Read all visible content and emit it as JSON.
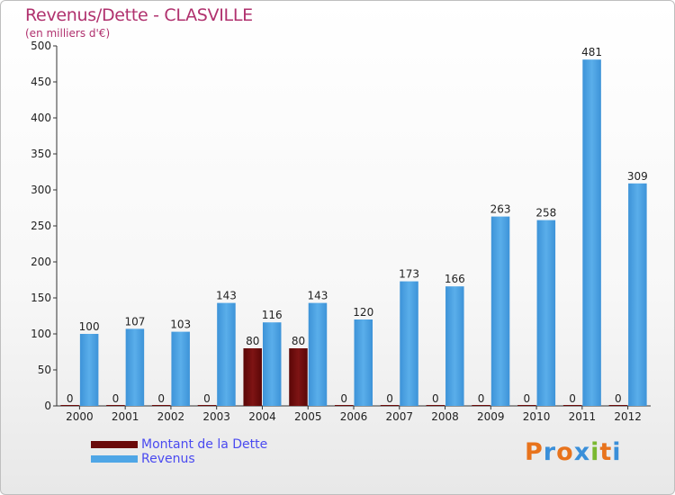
{
  "chart_data": {
    "type": "bar",
    "title": "Revenus/Dette - CLASVILLE",
    "subtitle": "(en milliers d'€)",
    "categories": [
      "2000",
      "2001",
      "2002",
      "2003",
      "2004",
      "2005",
      "2006",
      "2007",
      "2008",
      "2009",
      "2010",
      "2011",
      "2012"
    ],
    "series": [
      {
        "name": "Montant de la Dette",
        "color": "#6b0a0a",
        "values": [
          0,
          0,
          0,
          0,
          80,
          80,
          0,
          0,
          0,
          0,
          0,
          0,
          0
        ]
      },
      {
        "name": "Revenus",
        "color": "#4fa6e6",
        "values": [
          100,
          107,
          103,
          143,
          116,
          143,
          120,
          173,
          166,
          263,
          258,
          481,
          309
        ]
      }
    ],
    "ylim": [
      0,
      500
    ],
    "yticks": [
      0,
      50,
      100,
      150,
      200,
      250,
      300,
      350,
      400,
      450,
      500
    ],
    "grid": false,
    "legend": "bottom-left"
  },
  "logo": {
    "letters": [
      "P",
      "r",
      "o",
      "x",
      "i",
      "t",
      "i"
    ],
    "colors": [
      "#e8731c",
      "#3a8fd9",
      "#e8731c",
      "#3a8fd9",
      "#7ab830",
      "#e8731c",
      "#3a8fd9"
    ]
  }
}
